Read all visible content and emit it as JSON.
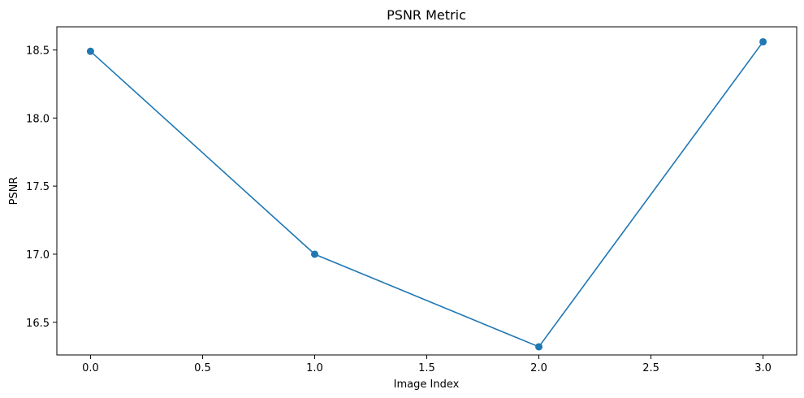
{
  "chart_data": {
    "type": "line",
    "title": "PSNR Metric",
    "xlabel": "Image Index",
    "ylabel": "PSNR",
    "x": [
      0,
      1,
      2,
      3
    ],
    "series": [
      {
        "values": [
          18.49,
          17.0,
          16.32,
          18.56
        ],
        "color": "#1f77b4",
        "marker": "circle"
      }
    ],
    "xlim": [
      -0.15,
      3.15
    ],
    "ylim": [
      16.26,
      18.67
    ],
    "xticks": [
      0.0,
      0.5,
      1.0,
      1.5,
      2.0,
      2.5,
      3.0
    ],
    "xtick_labels": [
      "0.0",
      "0.5",
      "1.0",
      "1.5",
      "2.0",
      "2.5",
      "3.0"
    ],
    "yticks": [
      16.5,
      17.0,
      17.5,
      18.0,
      18.5
    ],
    "ytick_labels": [
      "16.5",
      "17.0",
      "17.5",
      "18.0",
      "18.5"
    ],
    "grid": false,
    "legend": false
  }
}
